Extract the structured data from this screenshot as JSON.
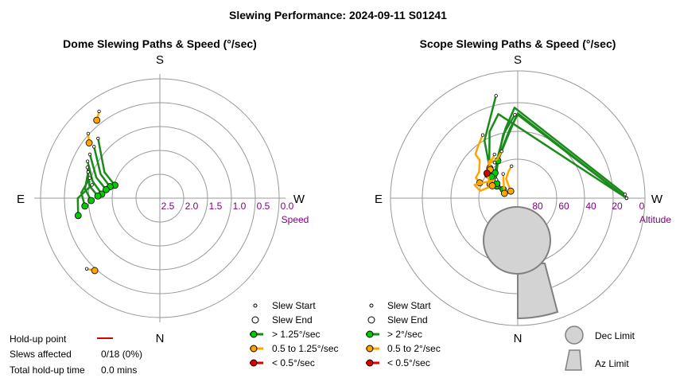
{
  "title": "Slewing Performance: 2024-09-11 S01241",
  "colors": {
    "fast": "#00cc00",
    "fast_line": "#1a8a1a",
    "mid": "#ffa500",
    "slow": "#dd0000",
    "tick": "#800080",
    "limit_fill": "#d3d3d3",
    "limit_edge": "#808080"
  },
  "chart_data": [
    {
      "type": "scatter",
      "subtype": "polar",
      "title": "Dome Slewing Paths & Speed (°/sec)",
      "cardinals": {
        "top": "S",
        "bottom": "N",
        "left": "E",
        "right": "W"
      },
      "radial_label": "Speed",
      "radial_ticks": [
        "2.5",
        "2.0",
        "1.5",
        "1.0",
        "0.5",
        "0.0"
      ],
      "radial_range": [
        0.0,
        3.0
      ],
      "grid": true,
      "legend": {
        "placement": "bottom-right",
        "entries": [
          {
            "label": "Slew Start",
            "marker": "small-circle"
          },
          {
            "label": "Slew End",
            "marker": "circle"
          },
          {
            "label": "> 1.25°/sec",
            "color": "#00cc00"
          },
          {
            "label": "0.5 to 1.25°/sec",
            "color": "#ffa500"
          },
          {
            "label": "< 0.5°/sec",
            "color": "#dd0000"
          }
        ]
      },
      "series": [
        {
          "category": "> 1.25°/sec",
          "color": "#00cc00",
          "paths": [
            [
              [
                134,
                1.2
              ],
              [
                115,
                1.72
              ],
              [
                106,
                2.02
              ]
            ],
            [
              [
                128,
                1.25
              ],
              [
                112,
                1.66
              ],
              [
                103,
                1.93
              ]
            ],
            [
              [
                122,
                1.27
              ],
              [
                108,
                1.6
              ],
              [
                99,
                1.86
              ]
            ],
            [
              [
                117,
                1.3
              ],
              [
                104,
                1.55
              ],
              [
                94,
                1.78
              ]
            ],
            [
              [
                113,
                1.35
              ],
              [
                100,
                1.5
              ],
              [
                92,
                1.7
              ]
            ],
            [
              [
                110,
                1.4
              ],
              [
                97,
                1.42
              ],
              [
                88,
                1.56
              ]
            ],
            [
              [
                106,
                1.47
              ],
              [
                94,
                1.35
              ],
              [
                84,
                1.42
              ]
            ],
            [
              [
                101,
                1.55
              ],
              [
                90,
                1.28
              ],
              [
                78,
                1.25
              ]
            ]
          ]
        },
        {
          "category": "0.5 to 1.25°/sec",
          "color": "#ffa500",
          "paths": [
            [
              [
                145,
                0.78
              ],
              [
                141,
                0.9
              ]
            ],
            [
              [
                132,
                0.98
              ],
              [
                128,
                1.12
              ]
            ],
            [
              [
                46,
                0.87
              ],
              [
                42,
                0.96
              ]
            ]
          ]
        }
      ]
    },
    {
      "type": "scatter",
      "subtype": "polar",
      "title": "Scope Slewing Paths & Speed (°/sec)",
      "cardinals": {
        "top": "S",
        "bottom": "N",
        "left": "E",
        "right": "W"
      },
      "radial_label": "Altitude",
      "radial_ticks": [
        "80",
        "60",
        "40",
        "20",
        "0"
      ],
      "radial_range": [
        90,
        0
      ],
      "grid": true,
      "limits": [
        "Dec Limit",
        "Az Limit"
      ],
      "legend": {
        "placement": "bottom-right",
        "entries": [
          {
            "label": "Slew Start",
            "marker": "small-circle"
          },
          {
            "label": "Slew End",
            "marker": "circle"
          },
          {
            "label": "> 2°/sec",
            "color": "#00cc00"
          },
          {
            "label": "0.5 to 2°/sec",
            "color": "#ffa500"
          },
          {
            "label": "< 0.5°/sec",
            "color": "#dd0000"
          }
        ]
      },
      "series": [
        {
          "category": "> 2°/sec",
          "color": "#00cc00",
          "paths": [
            [
              [
                -90,
                13
              ],
              [
                180,
                31
              ],
              [
                174,
                40
              ],
              [
                164,
                52
              ],
              [
                146,
                63
              ],
              [
                129,
                70
              ],
              [
                120,
                73
              ]
            ],
            [
              [
                -90,
                13
              ],
              [
                180,
                30
              ],
              [
                176,
                38
              ],
              [
                168,
                49
              ],
              [
                152,
                60
              ],
              [
                133,
                69
              ],
              [
                125,
                72
              ]
            ],
            [
              [
                -92,
                14
              ],
              [
                178,
                26
              ],
              [
                170,
                40
              ],
              [
                155,
                57
              ],
              [
                138,
                66
              ]
            ],
            [
              [
                178,
                31
              ],
              [
                167,
                44
              ],
              [
                152,
                60
              ]
            ],
            [
              [
                120,
                76
              ],
              [
                111,
                80
              ],
              [
                121,
                78
              ]
            ],
            [
              [
                -90,
                13
              ],
              [
                167,
                29
              ],
              [
                157,
                39
              ],
              [
                145,
                55
              ],
              [
                128,
                63
              ]
            ],
            [
              [
                168,
                16
              ],
              [
                150,
                43
              ],
              [
                129,
                66
              ]
            ]
          ]
        },
        {
          "category": "0.5 to 2°/sec",
          "color": "#ffa500",
          "paths": [
            [
              [
                151,
                39
              ],
              [
                142,
                44
              ],
              [
                136,
                47
              ],
              [
                135,
                52
              ],
              [
                124,
                57
              ],
              [
                116,
                57
              ],
              [
                112,
                61
              ]
            ],
            [
              [
                161,
                55
              ],
              [
                152,
                59
              ],
              [
                140,
                58
              ],
              [
                129,
                62
              ],
              [
                117,
                68
              ]
            ],
            [
              [
                131,
                70
              ],
              [
                107,
                58
              ],
              [
                101,
                63
              ],
              [
                116,
                70
              ]
            ],
            [
              [
                149,
                70
              ],
              [
                126,
                78
              ],
              [
                110,
                80
              ]
            ],
            [
              [
                169,
                67
              ],
              [
                161,
                70
              ],
              [
                149,
                74
              ],
              [
                135,
                83
              ]
            ],
            [
              [
                152,
                55
              ],
              [
                147,
                57
              ],
              [
                142,
                57
              ],
              [
                137,
                61
              ]
            ],
            [
              [
                147,
                60
              ],
              [
                142,
                57
              ],
              [
                136,
                62
              ]
            ]
          ]
        },
        {
          "category": "< 0.5°/sec",
          "color": "#dd0000",
          "paths": [
            [
              [
                129,
                63
              ],
              [
                129,
                62
              ]
            ]
          ]
        }
      ]
    }
  ],
  "holdup": {
    "point_label": "Hold-up point",
    "point_color": "#dd0000",
    "slews_label": "Slews affected",
    "slews_value": "0/18 (0%)",
    "time_label": "Total hold-up time",
    "time_value": "0.0 mins"
  }
}
